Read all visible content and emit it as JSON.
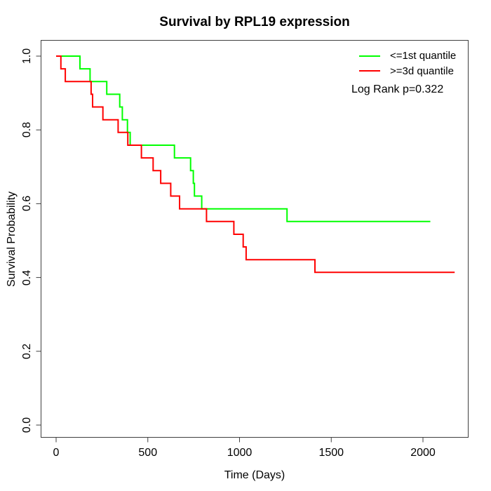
{
  "title": "Survival by RPL19 expression",
  "axes": {
    "x": {
      "label": "Time (Days)",
      "ticks": [
        0,
        500,
        1000,
        1500,
        2000
      ],
      "range": [
        0,
        2200
      ]
    },
    "y": {
      "label": "Survival Probability",
      "ticks": [
        "0.0",
        "0.2",
        "0.4",
        "0.6",
        "0.8",
        "1.0"
      ],
      "range": [
        0,
        1
      ]
    }
  },
  "legend": {
    "entries": [
      {
        "label": "<=1st quantile",
        "color": "#00ff00"
      },
      {
        "label": ">=3d quantile",
        "color": "#ff0000"
      }
    ],
    "note": "Log Rank p=0.322"
  },
  "chart_data": {
    "type": "line",
    "subtype": "kaplan-meier-step",
    "title": "Survival by RPL19 expression",
    "xlabel": "Time (Days)",
    "ylabel": "Survival Probability",
    "xlim": [
      0,
      2200
    ],
    "ylim": [
      0,
      1
    ],
    "grid": false,
    "legend_position": "top-right",
    "annotation": "Log Rank p=0.322",
    "series": [
      {
        "name": "<=1st quantile",
        "color": "#00ff00",
        "points_format": "[time_days, survival_probability_after_event]",
        "points": [
          [
            0,
            1.0
          ],
          [
            130,
            0.9655
          ],
          [
            185,
            0.931
          ],
          [
            276,
            0.8966
          ],
          [
            347,
            0.8621
          ],
          [
            361,
            0.8276
          ],
          [
            389,
            0.7931
          ],
          [
            404,
            0.7586
          ],
          [
            645,
            0.7241
          ],
          [
            733,
            0.6897
          ],
          [
            748,
            0.6552
          ],
          [
            754,
            0.6207
          ],
          [
            794,
            0.5862
          ],
          [
            1259,
            0.5517
          ],
          [
            2040,
            0.5517
          ]
        ]
      },
      {
        "name": ">=3d quantile",
        "color": "#ff0000",
        "points_format": "[time_days, survival_probability_after_event]",
        "points": [
          [
            0,
            1.0
          ],
          [
            26,
            0.9655
          ],
          [
            50,
            0.931
          ],
          [
            191,
            0.8966
          ],
          [
            199,
            0.8621
          ],
          [
            255,
            0.8276
          ],
          [
            338,
            0.7931
          ],
          [
            391,
            0.7586
          ],
          [
            465,
            0.7241
          ],
          [
            529,
            0.6897
          ],
          [
            570,
            0.6552
          ],
          [
            625,
            0.6207
          ],
          [
            673,
            0.5862
          ],
          [
            820,
            0.5517
          ],
          [
            969,
            0.5172
          ],
          [
            1020,
            0.4828
          ],
          [
            1036,
            0.4483
          ],
          [
            1411,
            0.4138
          ],
          [
            2173,
            0.4138
          ]
        ]
      }
    ]
  }
}
